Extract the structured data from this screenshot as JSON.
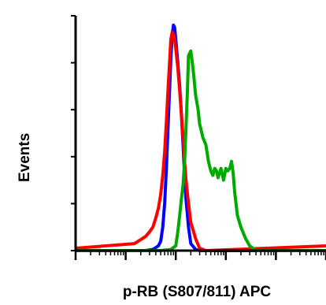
{
  "chart_data": {
    "type": "line",
    "title": "",
    "xlabel": "p-RB (S807/811) APC",
    "ylabel": "Events",
    "x_scale": "log",
    "xlim": [
      1,
      100000
    ],
    "ylim": [
      0,
      100
    ],
    "grid": false,
    "legend": "none",
    "series": [
      {
        "color": "#0000ff",
        "x": [
          1,
          15,
          25,
          35,
          45,
          50,
          55,
          60,
          65,
          70,
          75,
          80,
          85,
          90,
          95,
          100,
          110,
          120,
          130,
          140,
          150,
          160,
          180,
          200,
          250,
          300,
          100000
        ],
        "y": [
          0,
          0,
          0,
          0.5,
          2,
          4,
          10,
          20,
          35,
          52,
          68,
          82,
          92,
          96,
          95,
          90,
          80,
          70,
          58,
          45,
          32,
          22,
          10,
          3,
          0.5,
          0,
          0
        ]
      },
      {
        "color": "#ff0000",
        "x": [
          1,
          15,
          25,
          30,
          35,
          40,
          45,
          50,
          55,
          60,
          65,
          70,
          75,
          80,
          85,
          90,
          95,
          100,
          110,
          120,
          130,
          140,
          150,
          160,
          180,
          200,
          250,
          300,
          400,
          100000
        ],
        "y": [
          1,
          3,
          6,
          8,
          10,
          14,
          18,
          24,
          32,
          42,
          55,
          68,
          80,
          90,
          93,
          92,
          90,
          86,
          78,
          68,
          58,
          48,
          38,
          30,
          20,
          12,
          5,
          1,
          0,
          2
        ]
      },
      {
        "color": "#00aa00",
        "x": [
          1,
          50,
          80,
          100,
          110,
          120,
          130,
          140,
          150,
          160,
          170,
          180,
          200,
          220,
          250,
          280,
          300,
          350,
          400,
          450,
          500,
          550,
          600,
          650,
          700,
          800,
          900,
          1000,
          1100,
          1200,
          1300,
          1400,
          1500,
          1700,
          2000,
          2500,
          3000,
          3500,
          4000,
          5000,
          7000,
          10000,
          100000
        ],
        "y": [
          0,
          0,
          0.5,
          2,
          8,
          15,
          22,
          28,
          38,
          52,
          67,
          83,
          85,
          78,
          66,
          60,
          54,
          48,
          45,
          38,
          34,
          32,
          35,
          34,
          31,
          35,
          30,
          35,
          34,
          35,
          38,
          33,
          25,
          15,
          10,
          5,
          2,
          1,
          0,
          0,
          0,
          0,
          0
        ]
      }
    ]
  }
}
